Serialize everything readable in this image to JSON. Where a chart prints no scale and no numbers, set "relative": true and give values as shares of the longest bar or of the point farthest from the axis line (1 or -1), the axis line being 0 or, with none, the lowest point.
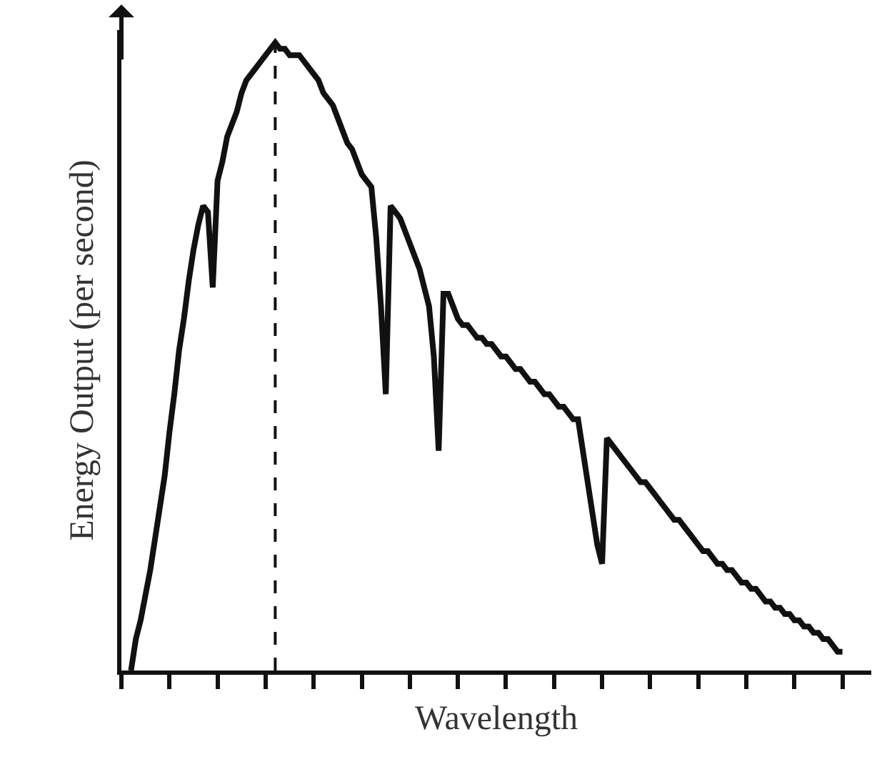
{
  "chart_data": {
    "type": "line",
    "relative": true,
    "xlabel": "Wavelength",
    "ylabel": "Energy Output (per second)",
    "categories": [
      null,
      null,
      null,
      null,
      null,
      null,
      null,
      null,
      null,
      null,
      null,
      null,
      null,
      null,
      null,
      null,
      null,
      null,
      null,
      null,
      null,
      null,
      null,
      null,
      null,
      null,
      null,
      null,
      null,
      null,
      null,
      null,
      null,
      null,
      null,
      null,
      null,
      null,
      null,
      null,
      null,
      null,
      null,
      null,
      null,
      null,
      null,
      null,
      null,
      null,
      null,
      null,
      null,
      null,
      null,
      null,
      null,
      null,
      null,
      null,
      null,
      null,
      null,
      null,
      null,
      null,
      null,
      null,
      null,
      null,
      null,
      null,
      null,
      null,
      null,
      null,
      null,
      null,
      null,
      null,
      null,
      null,
      null,
      null,
      null,
      null,
      null,
      null,
      null,
      null,
      null,
      null,
      null,
      null,
      null,
      null,
      null,
      null,
      null,
      null,
      null,
      null,
      null,
      null,
      null,
      null,
      null,
      null,
      null,
      null,
      null,
      null,
      null,
      null,
      null,
      null,
      null,
      null,
      null,
      null,
      null,
      null,
      null,
      null,
      null,
      null,
      null,
      null,
      null,
      null,
      null,
      null,
      null,
      null,
      null,
      null,
      null,
      null,
      null,
      null,
      null,
      null,
      null,
      null,
      null,
      null,
      null,
      null,
      null
    ],
    "series": [
      {
        "color": "#111111",
        "values": [
          0,
          0.05,
          0.08,
          0.12,
          0.16,
          0.21,
          0.26,
          0.31,
          0.38,
          0.44,
          0.51,
          0.56,
          0.62,
          0.67,
          0.71,
          0.74,
          0.73,
          0.61,
          0.78,
          0.81,
          0.85,
          0.87,
          0.89,
          0.92,
          0.94,
          0.95,
          0.96,
          0.97,
          0.98,
          0.99,
          1,
          0.99,
          0.99,
          0.98,
          0.98,
          0.98,
          0.97,
          0.96,
          0.95,
          0.94,
          0.92,
          0.91,
          0.9,
          0.88,
          0.86,
          0.84,
          0.83,
          0.81,
          0.79,
          0.78,
          0.77,
          0.69,
          0.58,
          0.44,
          0.74,
          0.73,
          0.72,
          0.7,
          0.68,
          0.66,
          0.64,
          0.61,
          0.58,
          0.5,
          0.35,
          0.6,
          0.6,
          0.58,
          0.56,
          0.55,
          0.55,
          0.54,
          0.53,
          0.53,
          0.52,
          0.52,
          0.51,
          0.5,
          0.5,
          0.49,
          0.48,
          0.48,
          0.47,
          0.46,
          0.46,
          0.45,
          0.44,
          0.44,
          0.43,
          0.42,
          0.42,
          0.41,
          0.4,
          0.4,
          0.35,
          0.3,
          0.25,
          0.2,
          0.17,
          0.37,
          0.36,
          0.35,
          0.34,
          0.33,
          0.32,
          0.31,
          0.3,
          0.3,
          0.29,
          0.28,
          0.27,
          0.26,
          0.25,
          0.24,
          0.24,
          0.23,
          0.22,
          0.21,
          0.2,
          0.19,
          0.19,
          0.18,
          0.17,
          0.17,
          0.16,
          0.16,
          0.15,
          0.14,
          0.14,
          0.13,
          0.13,
          0.12,
          0.11,
          0.11,
          0.1,
          0.1,
          0.09,
          0.09,
          0.08,
          0.08,
          0.07,
          0.07,
          0.06,
          0.06,
          0.05,
          0.05,
          0.04,
          0.03,
          0.03
        ]
      }
    ],
    "ref_lines": [
      {
        "axis": "x",
        "color": "#111111",
        "line_style": "dashed"
      }
    ],
    "grid": false,
    "marker": "none",
    "line_style": "solid"
  }
}
